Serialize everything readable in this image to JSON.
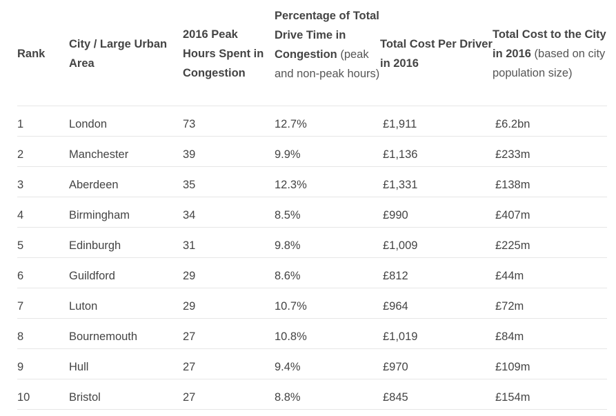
{
  "headers": {
    "rank": "Rank",
    "city": "City / Large Urban Area",
    "peak_hours": "2016 Peak Hours Spent in Congestion",
    "pct_bold": "Percentage of Total Drive Time in Congestion",
    "pct_light": " (peak and non-peak hours)",
    "cost_driver": "Total Cost Per Driver in 2016",
    "cost_city_bold": "Total Cost to the City in 2016",
    "cost_city_light": " (based on city population size)"
  },
  "rows": [
    {
      "rank": "1",
      "city": "London",
      "hours": "73",
      "pct": "12.7%",
      "cost_driver": "£1,911",
      "cost_city": "£6.2bn"
    },
    {
      "rank": "2",
      "city": "Manchester",
      "hours": "39",
      "pct": "9.9%",
      "cost_driver": "£1,136",
      "cost_city": "£233m"
    },
    {
      "rank": "3",
      "city": "Aberdeen",
      "hours": "35",
      "pct": "12.3%",
      "cost_driver": "£1,331",
      "cost_city": "£138m"
    },
    {
      "rank": "4",
      "city": "Birmingham",
      "hours": "34",
      "pct": "8.5%",
      "cost_driver": "£990",
      "cost_city": "£407m"
    },
    {
      "rank": "5",
      "city": "Edinburgh",
      "hours": "31",
      "pct": "9.8%",
      "cost_driver": "£1,009",
      "cost_city": "£225m"
    },
    {
      "rank": "6",
      "city": "Guildford",
      "hours": "29",
      "pct": "8.6%",
      "cost_driver": "£812",
      "cost_city": "£44m"
    },
    {
      "rank": "7",
      "city": "Luton",
      "hours": "29",
      "pct": "10.7%",
      "cost_driver": "£964",
      "cost_city": "£72m"
    },
    {
      "rank": "8",
      "city": "Bournemouth",
      "hours": "27",
      "pct": "10.8%",
      "cost_driver": "£1,019",
      "cost_city": "£84m"
    },
    {
      "rank": "9",
      "city": "Hull",
      "hours": "27",
      "pct": "9.4%",
      "cost_driver": "£970",
      "cost_city": "£109m"
    },
    {
      "rank": "10",
      "city": "Bristol",
      "hours": "27",
      "pct": "8.8%",
      "cost_driver": "£845",
      "cost_city": "£154m"
    }
  ]
}
